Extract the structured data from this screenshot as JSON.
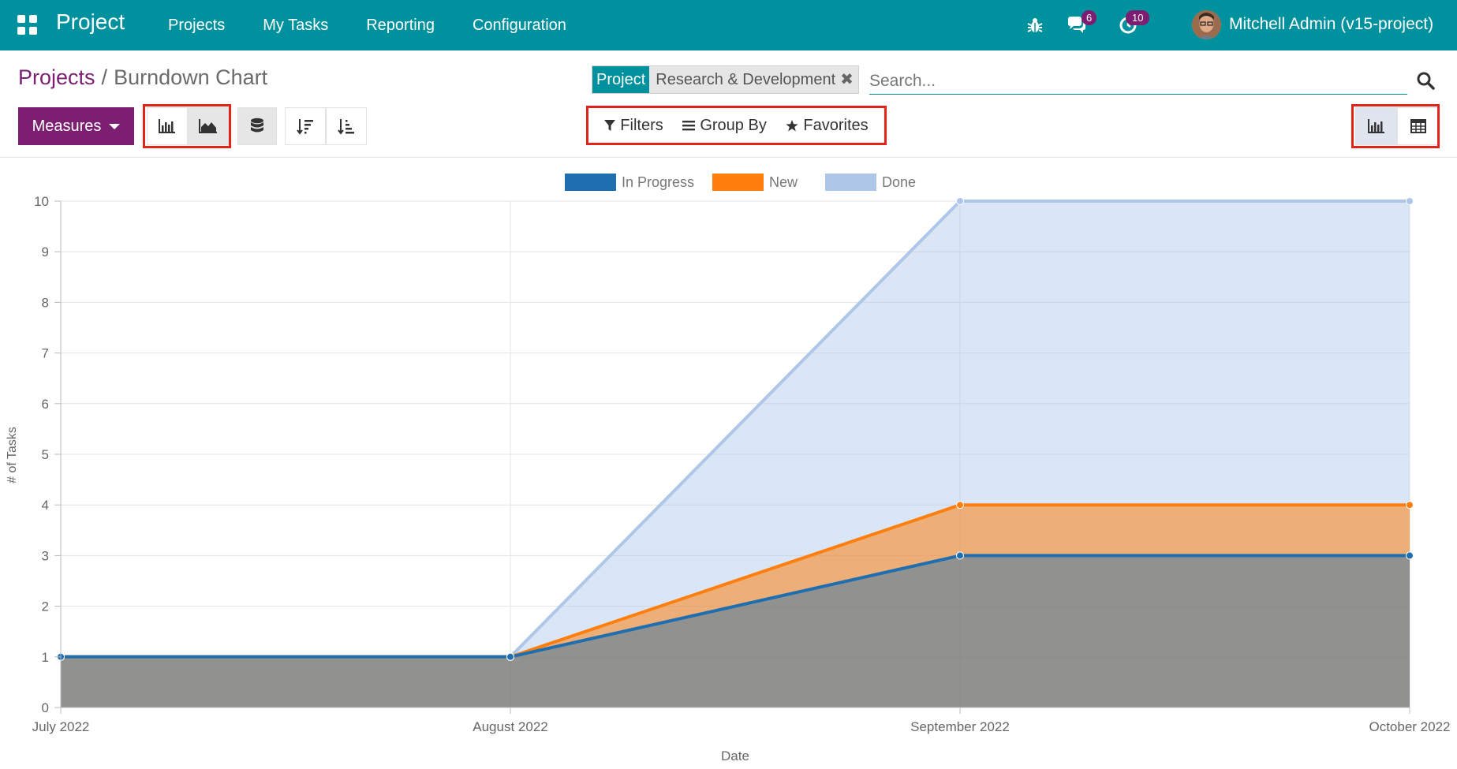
{
  "navbar": {
    "app_name": "Project",
    "menu": [
      "Projects",
      "My Tasks",
      "Reporting",
      "Configuration"
    ],
    "messages_count": "6",
    "activities_count": "10",
    "user": "Mitchell Admin (v15-project)",
    "color": "#00919e"
  },
  "breadcrumb": {
    "parent": "Projects",
    "separator": "/",
    "current": "Burndown Chart"
  },
  "search": {
    "facet_label": "Project",
    "facet_value": "Research & Development",
    "placeholder": "Search..."
  },
  "toolbar": {
    "measures_label": "Measures",
    "chart_types": [
      {
        "icon": "bar-chart-icon",
        "active": false
      },
      {
        "icon": "area-chart-icon",
        "active": true
      }
    ],
    "stacked_icon": "database-icon",
    "sort_icons": [
      "sort-descending-icon",
      "sort-ascending-icon"
    ],
    "filters_label": "Filters",
    "group_by_label": "Group By",
    "favorites_label": "Favorites",
    "views": [
      {
        "icon": "graph-view-icon",
        "active": true
      },
      {
        "icon": "pivot-view-icon",
        "active": false
      }
    ],
    "accent": "#7c1f73",
    "highlight": "#e2231a"
  },
  "chart_data": {
    "type": "area",
    "stacked": false,
    "categories": [
      "July 2022",
      "August 2022",
      "September 2022",
      "October 2022"
    ],
    "series": [
      {
        "name": "In Progress",
        "values": [
          1,
          1,
          3,
          3
        ],
        "color": "#1f6eb0"
      },
      {
        "name": "New",
        "values": [
          1,
          1,
          4,
          4
        ],
        "color": "#ff7f0e"
      },
      {
        "name": "Done",
        "values": [
          1,
          1,
          10,
          10
        ],
        "color": "#aec7e8"
      }
    ],
    "xlabel": "Date",
    "ylabel": "# of Tasks",
    "ylim": [
      0,
      10
    ],
    "yticks": [
      0,
      1,
      2,
      3,
      4,
      5,
      6,
      7,
      8,
      9,
      10
    ],
    "grid": true,
    "legend": "top-center"
  }
}
